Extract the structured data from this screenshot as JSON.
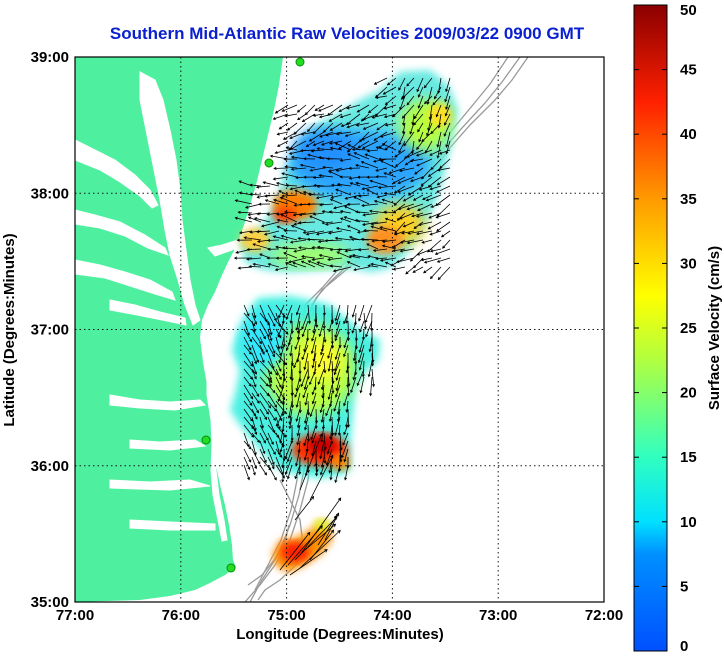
{
  "title": "Southern Mid-Atlantic Raw Velocities 2009/03/22 0900 GMT",
  "map": {
    "xlabel": "Longitude (Degrees:Minutes)",
    "ylabel": "Latitude (Degrees:Minutes)",
    "lon_range": [
      -77,
      -72
    ],
    "lat_range": [
      35,
      39
    ],
    "lon_ticks": [
      -77,
      -76,
      -75,
      -74,
      -73,
      -72
    ],
    "lon_tick_labels": [
      "77:00",
      "76:00",
      "75:00",
      "74:00",
      "73:00",
      "72:00"
    ],
    "lat_ticks": [
      39,
      38,
      37,
      36,
      35
    ],
    "lat_tick_labels": [
      "39:00",
      "38:00",
      "37:00",
      "36:00",
      "35:00"
    ],
    "grid": true,
    "land_color": "#4ef0a0",
    "bathymetry_color": "#999999",
    "station_color": "#22dd22"
  },
  "colorbar": {
    "label": "Surface Velocity (cm/s)",
    "range": [
      0,
      50
    ],
    "ticks": [
      0,
      5,
      10,
      15,
      20,
      25,
      30,
      35,
      40,
      45,
      50
    ],
    "tick_labels": [
      "0",
      "5",
      "10",
      "15",
      "20",
      "25",
      "30",
      "35",
      "40",
      "45",
      "50"
    ],
    "colormap": "jet"
  }
}
